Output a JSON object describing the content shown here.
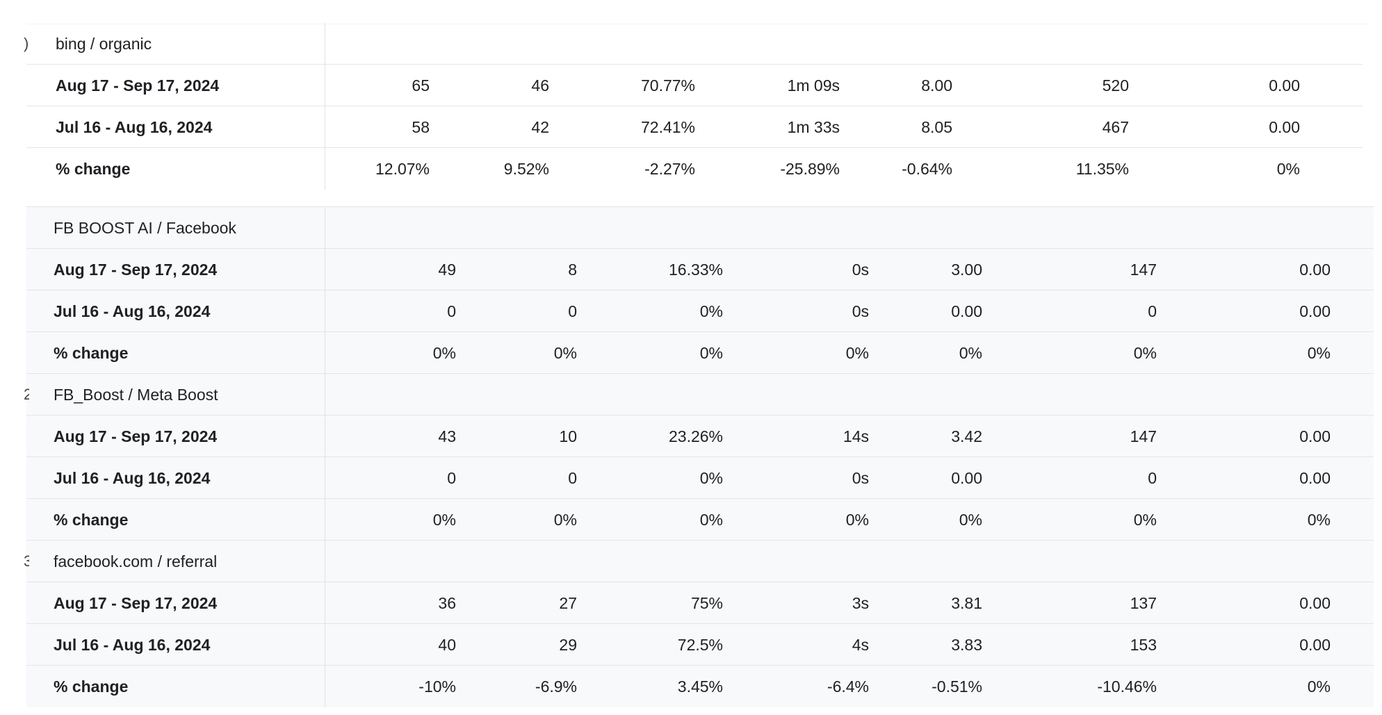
{
  "groups": [
    {
      "row_number": ")",
      "name": "bing / organic",
      "rows": [
        {
          "label": "Aug 17 - Sep 17, 2024",
          "values": [
            "65",
            "46",
            "70.77%",
            "1m 09s",
            "8.00",
            "520",
            "0.00"
          ]
        },
        {
          "label": "Jul 16 - Aug 16, 2024",
          "values": [
            "58",
            "42",
            "72.41%",
            "1m 33s",
            "8.05",
            "467",
            "0.00"
          ]
        },
        {
          "label": "% change",
          "values": [
            "12.07%",
            "9.52%",
            "-2.27%",
            "-25.89%",
            "-0.64%",
            "11.35%",
            "0%"
          ]
        }
      ]
    },
    {
      "row_number": "",
      "name": "FB BOOST AI / Facebook",
      "rows": [
        {
          "label": "Aug 17 - Sep 17, 2024",
          "values": [
            "49",
            "8",
            "16.33%",
            "0s",
            "3.00",
            "147",
            "0.00"
          ]
        },
        {
          "label": "Jul 16 - Aug 16, 2024",
          "values": [
            "0",
            "0",
            "0%",
            "0s",
            "0.00",
            "0",
            "0.00"
          ]
        },
        {
          "label": "% change",
          "values": [
            "0%",
            "0%",
            "0%",
            "0%",
            "0%",
            "0%",
            "0%"
          ]
        }
      ]
    },
    {
      "row_number": "2",
      "name": "FB_Boost / Meta Boost",
      "rows": [
        {
          "label": "Aug 17 - Sep 17, 2024",
          "values": [
            "43",
            "10",
            "23.26%",
            "14s",
            "3.42",
            "147",
            "0.00"
          ]
        },
        {
          "label": "Jul 16 - Aug 16, 2024",
          "values": [
            "0",
            "0",
            "0%",
            "0s",
            "0.00",
            "0",
            "0.00"
          ]
        },
        {
          "label": "% change",
          "values": [
            "0%",
            "0%",
            "0%",
            "0%",
            "0%",
            "0%",
            "0%"
          ]
        }
      ]
    },
    {
      "row_number": "3",
      "name": "facebook.com / referral",
      "rows": [
        {
          "label": "Aug 17 - Sep 17, 2024",
          "values": [
            "36",
            "27",
            "75%",
            "3s",
            "3.81",
            "137",
            "0.00"
          ]
        },
        {
          "label": "Jul 16 - Aug 16, 2024",
          "values": [
            "40",
            "29",
            "72.5%",
            "4s",
            "3.83",
            "153",
            "0.00"
          ]
        },
        {
          "label": "% change",
          "values": [
            "-10%",
            "-6.9%",
            "3.45%",
            "-6.4%",
            "-0.51%",
            "-10.46%",
            "0%"
          ]
        }
      ]
    }
  ]
}
